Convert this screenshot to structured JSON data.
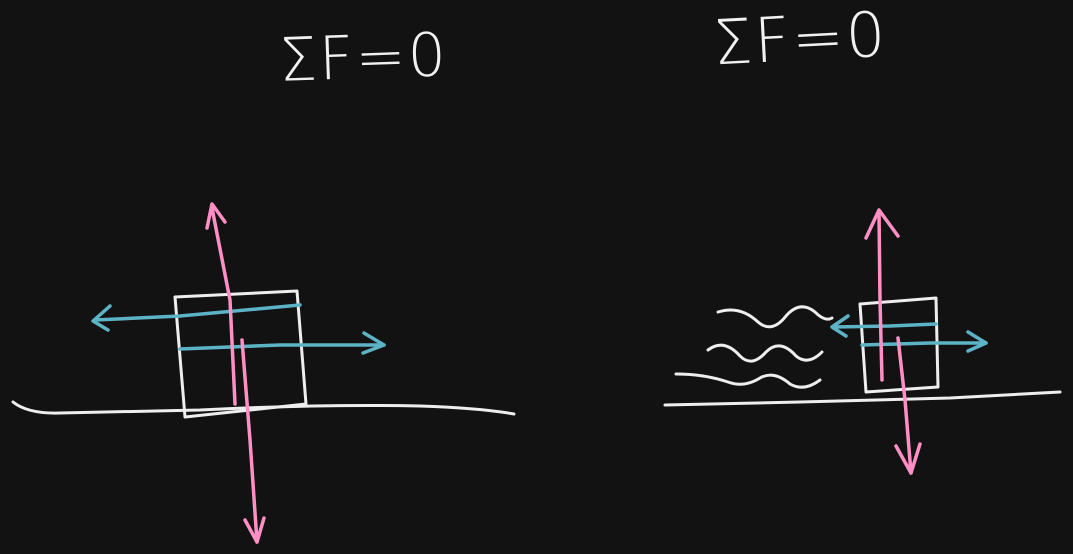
{
  "colors": {
    "background": "#121212",
    "chalk": "#eeeeee",
    "vertical_force": "#ff8fc4",
    "horizontal_force": "#5db3c6"
  },
  "diagrams": {
    "left": {
      "equation": "ΣF=0"
    },
    "right": {
      "equation": "ΣF=0"
    }
  }
}
